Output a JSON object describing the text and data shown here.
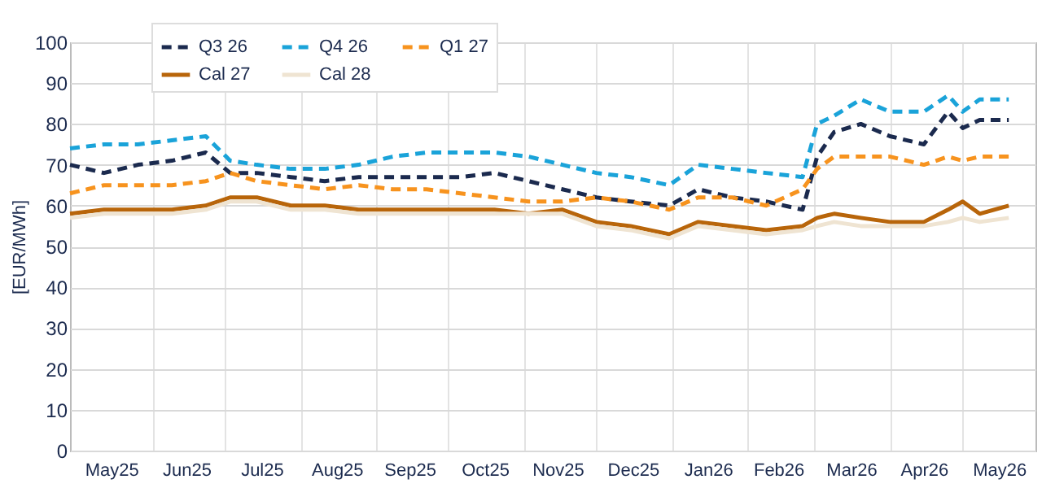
{
  "chart_data": {
    "type": "line",
    "ylabel": "[EUR/MWh]",
    "x": [
      "2025-04-28",
      "2025-05-12",
      "2025-05-26",
      "2025-06-09",
      "2025-06-23",
      "2025-07-03",
      "2025-07-14",
      "2025-07-28",
      "2025-08-11",
      "2025-08-25",
      "2025-09-08",
      "2025-09-22",
      "2025-10-06",
      "2025-10-20",
      "2025-11-03",
      "2025-11-17",
      "2025-12-01",
      "2025-12-15",
      "2025-12-31",
      "2026-01-12",
      "2026-01-26",
      "2026-02-09",
      "2026-02-24",
      "2026-03-02",
      "2026-03-09",
      "2026-03-20",
      "2026-04-01",
      "2026-04-15",
      "2026-04-25",
      "2026-05-01",
      "2026-05-08",
      "2026-05-20"
    ],
    "series": [
      {
        "name": "Q3 26",
        "color": "#1b2a4e",
        "line_style": "dashed",
        "values": [
          70,
          68,
          70,
          71,
          73,
          68,
          68,
          67,
          66,
          67,
          67,
          67,
          67,
          68,
          66,
          64,
          62,
          61,
          60,
          64,
          62,
          61,
          59,
          72,
          78,
          80,
          77,
          75,
          83,
          79,
          81,
          81
        ]
      },
      {
        "name": "Q4 26",
        "color": "#1aa3d9",
        "line_style": "dashed",
        "values": [
          74,
          75,
          75,
          76,
          77,
          71,
          70,
          69,
          69,
          70,
          72,
          73,
          73,
          73,
          72,
          70,
          68,
          67,
          65,
          70,
          69,
          68,
          67,
          80,
          82,
          86,
          83,
          83,
          87,
          83,
          86,
          86
        ]
      },
      {
        "name": "Q1 27",
        "color": "#f7931e",
        "line_style": "dashed",
        "values": [
          63,
          65,
          65,
          65,
          66,
          68,
          66,
          65,
          64,
          65,
          64,
          64,
          63,
          62,
          61,
          61,
          62,
          61,
          59,
          62,
          62,
          60,
          64,
          69,
          72,
          72,
          72,
          70,
          72,
          71,
          72,
          72
        ]
      },
      {
        "name": "Cal 27",
        "color": "#b8650a",
        "line_style": "solid",
        "values": [
          58,
          59,
          59,
          59,
          60,
          62,
          62,
          60,
          60,
          59,
          59,
          59,
          59,
          59,
          58,
          59,
          56,
          55,
          53,
          56,
          55,
          54,
          55,
          57,
          58,
          57,
          56,
          56,
          59,
          61,
          58,
          60
        ]
      },
      {
        "name": "Cal 28",
        "color": "#efe4d2",
        "line_style": "solid",
        "values": [
          57,
          58,
          58,
          58,
          59,
          61,
          61,
          59,
          59,
          58,
          58,
          58,
          58,
          58,
          58,
          58,
          55,
          54,
          52,
          55,
          54,
          53,
          54,
          55,
          56,
          55,
          55,
          55,
          56,
          57,
          56,
          57
        ]
      }
    ],
    "xlim": [
      "2025-04-28",
      "2026-05-31"
    ],
    "xticks": [
      {
        "value": "2025-05-15",
        "label": "May25"
      },
      {
        "value": "2025-06-01",
        "label": null
      },
      {
        "value": "2025-06-15",
        "label": "Jun25"
      },
      {
        "value": "2025-07-01",
        "label": null
      },
      {
        "value": "2025-07-16",
        "label": "Jul25"
      },
      {
        "value": "2025-08-01",
        "label": null
      },
      {
        "value": "2025-08-16",
        "label": "Aug25"
      },
      {
        "value": "2025-09-01",
        "label": null
      },
      {
        "value": "2025-09-15",
        "label": "Sep25"
      },
      {
        "value": "2025-10-01",
        "label": null
      },
      {
        "value": "2025-10-16",
        "label": "Oct25"
      },
      {
        "value": "2025-11-01",
        "label": null
      },
      {
        "value": "2025-11-15",
        "label": "Nov25"
      },
      {
        "value": "2025-12-01",
        "label": null
      },
      {
        "value": "2025-12-16",
        "label": "Dec25"
      },
      {
        "value": "2026-01-01",
        "label": null
      },
      {
        "value": "2026-01-16",
        "label": "Jan26"
      },
      {
        "value": "2026-02-01",
        "label": null
      },
      {
        "value": "2026-02-14",
        "label": "Feb26"
      },
      {
        "value": "2026-03-01",
        "label": null
      },
      {
        "value": "2026-03-16",
        "label": "Mar26"
      },
      {
        "value": "2026-04-01",
        "label": null
      },
      {
        "value": "2026-04-15",
        "label": "Apr26"
      },
      {
        "value": "2026-05-01",
        "label": null
      },
      {
        "value": "2026-05-16",
        "label": "May26"
      }
    ],
    "ylim": [
      0,
      100
    ],
    "yticks": [
      0,
      10,
      20,
      30,
      40,
      50,
      60,
      70,
      80,
      90,
      100
    ],
    "grid": true,
    "legend": "top left"
  }
}
